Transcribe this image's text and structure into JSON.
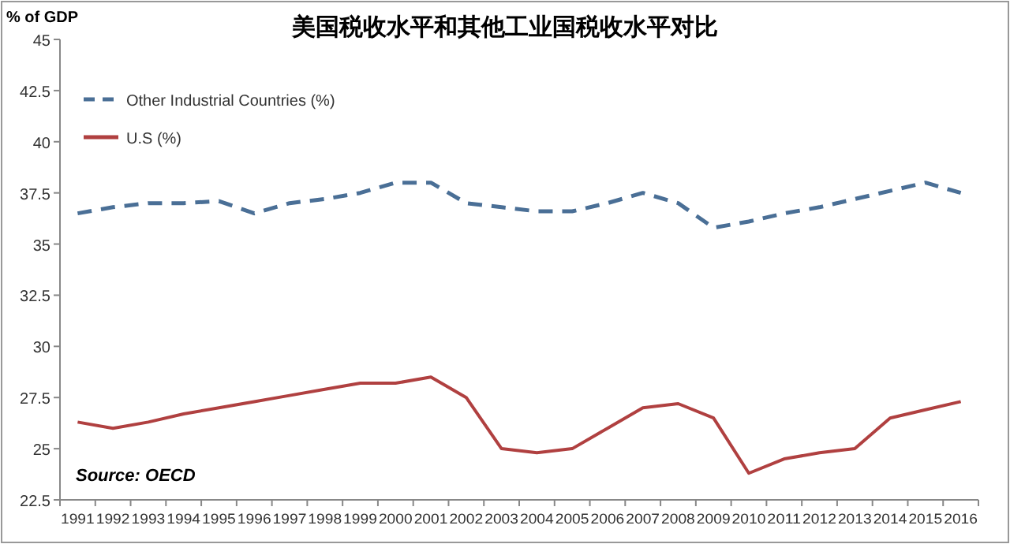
{
  "chart_data": {
    "type": "line",
    "title": "美国税收水平和其他工业国税收水平对比",
    "ylabel": "% of GDP",
    "categories": [
      "1991",
      "1992",
      "1993",
      "1994",
      "1995",
      "1996",
      "1997",
      "1998",
      "1999",
      "2000",
      "2001",
      "2002",
      "2003",
      "2004",
      "2005",
      "2006",
      "2007",
      "2008",
      "2009",
      "2010",
      "2011",
      "2012",
      "2013",
      "2014",
      "2015",
      "2016"
    ],
    "series": [
      {
        "name": "Other Industrial Countries (%)",
        "color": "#4a6f96",
        "line_style": "dashed",
        "values": [
          36.5,
          36.8,
          37.0,
          37.0,
          37.1,
          36.5,
          37.0,
          37.2,
          37.5,
          38.0,
          38.0,
          37.0,
          36.8,
          36.6,
          36.6,
          37.0,
          37.5,
          37.0,
          35.8,
          36.1,
          36.5,
          36.8,
          37.2,
          37.6,
          38.0,
          37.5
        ]
      },
      {
        "name": "U.S (%)",
        "color": "#b04040",
        "line_style": "solid",
        "values": [
          26.3,
          26.0,
          26.3,
          26.7,
          27.0,
          27.3,
          27.6,
          27.9,
          28.2,
          28.2,
          28.5,
          27.5,
          25.0,
          24.8,
          25.0,
          26.0,
          27.0,
          27.2,
          26.5,
          23.8,
          24.5,
          24.8,
          25.0,
          26.5,
          26.9,
          27.3
        ]
      }
    ],
    "ylim": [
      22.5,
      45
    ],
    "yticks": [
      22.5,
      25,
      27.5,
      30,
      32.5,
      35,
      37.5,
      40,
      42.5,
      45
    ],
    "grid": false,
    "legend": "top left",
    "marker": "none",
    "annotations": [
      "Source: OECD"
    ]
  }
}
